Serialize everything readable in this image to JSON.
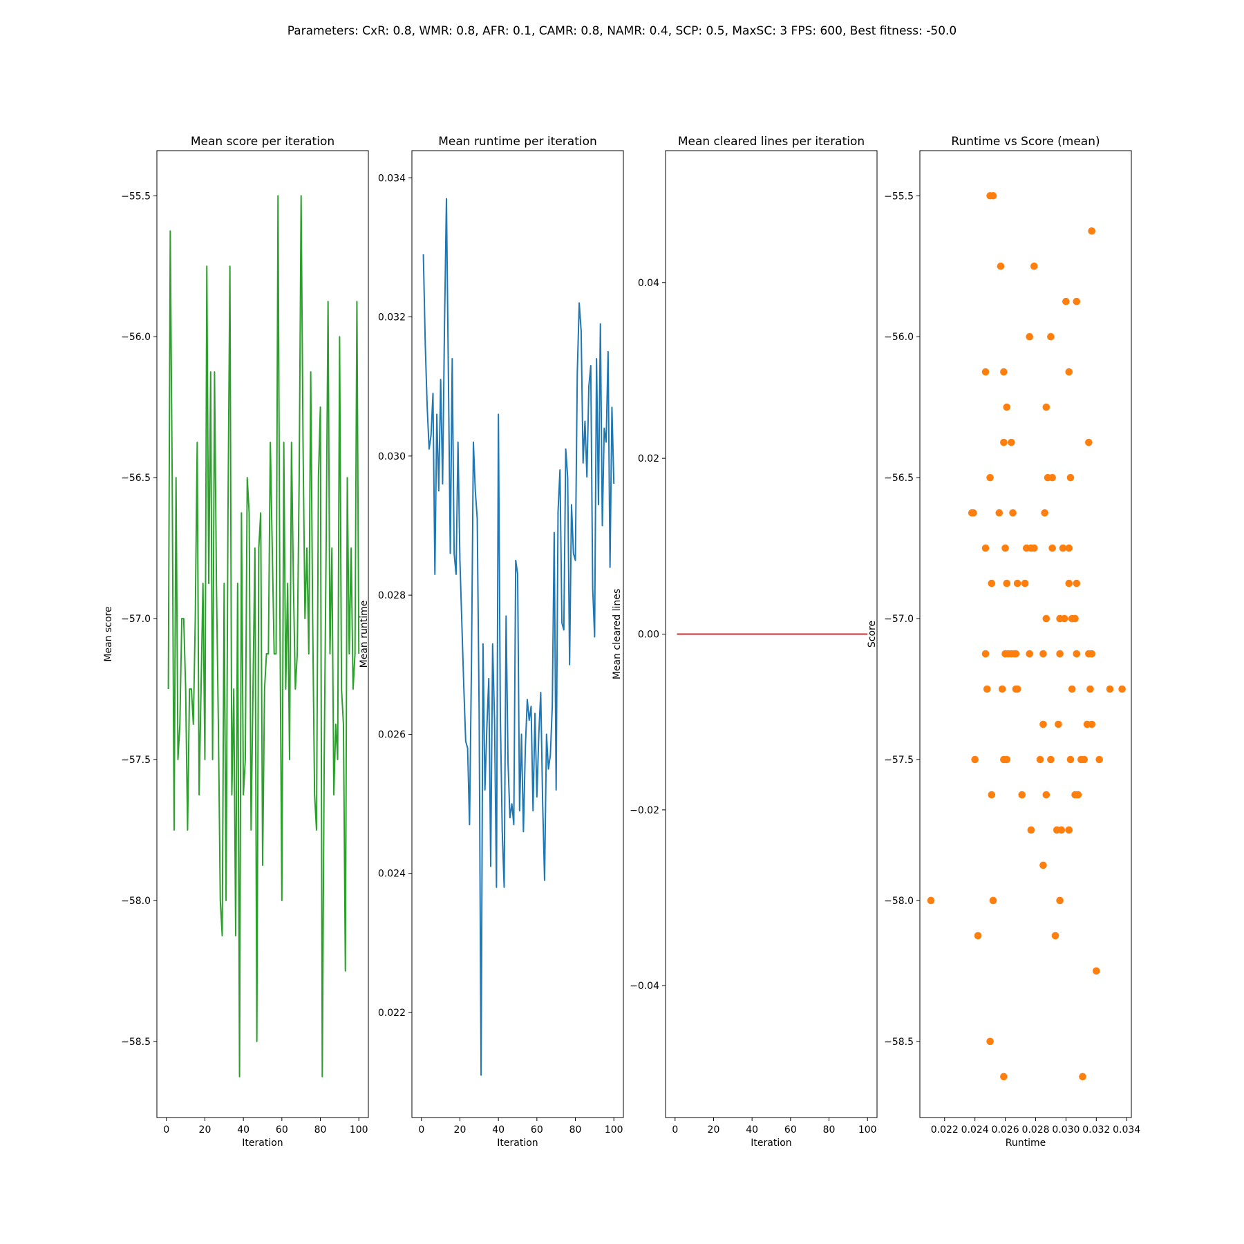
{
  "figure": {
    "suptitle": "Parameters: CxR: 0.8, WMR: 0.8, AFR: 0.1, CAMR: 0.8, NAMR: 0.4, SCP: 0.5, MaxSC: 3  FPS: 600, Best fitness: -50.0"
  },
  "chart_data": [
    {
      "type": "line",
      "title": "Mean score per iteration",
      "xlabel": "Iteration",
      "ylabel": "Mean score",
      "color": "#2ca02c",
      "xlim": [
        -4.95,
        104.95
      ],
      "ylim": [
        -58.77,
        -55.34
      ],
      "xticks": [
        0,
        20,
        40,
        60,
        80,
        100
      ],
      "yticks": [
        -55.5,
        -56.0,
        -56.5,
        -57.0,
        -57.5,
        -58.0,
        -58.5
      ],
      "xtick_labels": [
        "0",
        "20",
        "40",
        "60",
        "80",
        "100"
      ],
      "ytick_labels": [
        "−55.5",
        "−56.0",
        "−56.5",
        "−57.0",
        "−57.5",
        "−58.0",
        "−58.5"
      ],
      "series": [
        {
          "x": [
            1,
            2,
            3,
            4,
            5,
            6,
            7,
            8,
            9,
            10,
            11,
            12,
            13,
            14,
            15,
            16,
            17,
            18,
            19,
            20,
            21,
            22,
            23,
            24,
            25,
            26,
            27,
            28,
            29,
            30,
            31,
            32,
            33,
            34,
            35,
            36,
            37,
            38,
            39,
            40,
            41,
            42,
            43,
            44,
            45,
            46,
            47,
            48,
            49,
            50,
            51,
            52,
            53,
            54,
            55,
            56,
            57,
            58,
            59,
            60,
            61,
            62,
            63,
            64,
            65,
            66,
            67,
            68,
            69,
            70,
            71,
            72,
            73,
            74,
            75,
            76,
            77,
            78,
            79,
            80,
            81,
            82,
            83,
            84,
            85,
            86,
            87,
            88,
            89,
            90,
            91,
            92,
            93,
            94,
            95,
            96,
            97,
            98,
            99,
            100
          ],
          "y": [
            -57.25,
            -55.625,
            -56.5,
            -57.75,
            -56.5,
            -57.5,
            -57.375,
            -57.0,
            -57.0,
            -57.25,
            -57.75,
            -57.25,
            -57.25,
            -57.375,
            -57.0,
            -56.375,
            -57.625,
            -57.25,
            -56.875,
            -57.5,
            -55.75,
            -56.875,
            -56.125,
            -57.5,
            -56.125,
            -56.875,
            -57.375,
            -58.0,
            -58.125,
            -56.875,
            -58.0,
            -56.625,
            -55.75,
            -57.625,
            -57.25,
            -58.125,
            -56.875,
            -58.625,
            -56.625,
            -57.625,
            -57.5,
            -56.5,
            -56.625,
            -57.75,
            -57.25,
            -56.75,
            -58.5,
            -56.75,
            -56.625,
            -57.875,
            -57.25,
            -57.125,
            -57.125,
            -56.375,
            -56.75,
            -57.125,
            -57.125,
            -55.5,
            -57.0,
            -58.0,
            -56.375,
            -57.25,
            -56.875,
            -57.5,
            -56.375,
            -56.875,
            -57.25,
            -57.125,
            -56.5,
            -55.5,
            -56.375,
            -57.0,
            -56.75,
            -57.125,
            -56.125,
            -57.0,
            -57.625,
            -57.75,
            -56.5,
            -56.25,
            -58.625,
            -57.5,
            -56.75,
            -55.875,
            -57.125,
            -56.75,
            -57.625,
            -57.375,
            -57.5,
            -56.0,
            -57.25,
            -57.375,
            -58.25,
            -56.5,
            -57.125,
            -56.75,
            -57.25,
            -57.125,
            -55.875,
            -57.125
          ]
        }
      ]
    },
    {
      "type": "line",
      "title": "Mean runtime per iteration",
      "xlabel": "Iteration",
      "ylabel": "Mean runtime",
      "color": "#1f77b4",
      "xlim": [
        -4.95,
        104.95
      ],
      "ylim": [
        0.02049,
        0.03439
      ],
      "xticks": [
        0,
        20,
        40,
        60,
        80,
        100
      ],
      "yticks": [
        0.022,
        0.024,
        0.026,
        0.028,
        0.03,
        0.032,
        0.034
      ],
      "xtick_labels": [
        "0",
        "20",
        "40",
        "60",
        "80",
        "100"
      ],
      "ytick_labels": [
        "0.022",
        "0.024",
        "0.026",
        "0.028",
        "0.030",
        "0.032",
        "0.034"
      ],
      "series": [
        {
          "x": [
            1,
            2,
            3,
            4,
            5,
            6,
            7,
            8,
            9,
            10,
            11,
            12,
            13,
            14,
            15,
            16,
            17,
            18,
            19,
            20,
            21,
            22,
            23,
            24,
            25,
            26,
            27,
            28,
            29,
            30,
            31,
            32,
            33,
            34,
            35,
            36,
            37,
            38,
            39,
            40,
            41,
            42,
            43,
            44,
            45,
            46,
            47,
            48,
            49,
            50,
            51,
            52,
            53,
            54,
            55,
            56,
            57,
            58,
            59,
            60,
            61,
            62,
            63,
            64,
            65,
            66,
            67,
            68,
            69,
            70,
            71,
            72,
            73,
            74,
            75,
            76,
            77,
            78,
            79,
            80,
            81,
            82,
            83,
            84,
            85,
            86,
            87,
            88,
            89,
            90,
            91,
            92,
            93,
            94,
            95,
            96,
            97,
            98,
            99,
            100
          ],
          "y": [
            0.0329,
            0.0316,
            0.0307,
            0.0301,
            0.0303,
            0.0309,
            0.0283,
            0.0306,
            0.0295,
            0.0311,
            0.0296,
            0.0319,
            0.0337,
            0.0312,
            0.0286,
            0.0314,
            0.0286,
            0.0283,
            0.0302,
            0.0285,
            0.0276,
            0.0267,
            0.0259,
            0.0258,
            0.0247,
            0.027,
            0.0302,
            0.0295,
            0.0291,
            0.0263,
            0.0211,
            0.0273,
            0.0252,
            0.0261,
            0.0268,
            0.0241,
            0.0273,
            0.0262,
            0.0238,
            0.0306,
            0.0263,
            0.0246,
            0.0238,
            0.0277,
            0.0256,
            0.0248,
            0.025,
            0.0247,
            0.0285,
            0.0283,
            0.0249,
            0.026,
            0.0246,
            0.0258,
            0.0265,
            0.0262,
            0.0264,
            0.0249,
            0.0263,
            0.0251,
            0.026,
            0.0266,
            0.025,
            0.0239,
            0.026,
            0.0255,
            0.0257,
            0.0264,
            0.0289,
            0.0252,
            0.0292,
            0.0298,
            0.0276,
            0.0275,
            0.0301,
            0.0297,
            0.027,
            0.0293,
            0.0286,
            0.0285,
            0.0312,
            0.0322,
            0.0318,
            0.0299,
            0.0305,
            0.0297,
            0.031,
            0.0313,
            0.0281,
            0.0274,
            0.0314,
            0.0293,
            0.0319,
            0.029,
            0.0304,
            0.0302,
            0.0315,
            0.0284,
            0.0307,
            0.0296
          ]
        }
      ]
    },
    {
      "type": "line",
      "title": "Mean cleared lines per iteration",
      "xlabel": "Iteration",
      "ylabel": "Mean cleared lines",
      "color": "#d62728",
      "xlim": [
        -4.95,
        104.95
      ],
      "ylim": [
        -0.055,
        0.055
      ],
      "xticks": [
        0,
        20,
        40,
        60,
        80,
        100
      ],
      "yticks": [
        0.04,
        0.02,
        0.0,
        -0.02,
        -0.04
      ],
      "xtick_labels": [
        "0",
        "20",
        "40",
        "60",
        "80",
        "100"
      ],
      "ytick_labels": [
        "0.04",
        "0.02",
        "0.00",
        "−0.02",
        "−0.04"
      ],
      "series": [
        {
          "x": [
            1,
            100
          ],
          "y": [
            0,
            0
          ]
        }
      ]
    },
    {
      "type": "scatter",
      "title": "Runtime vs Score (mean)",
      "xlabel": "Runtime",
      "ylabel": "Score",
      "color": "#ff7f0e",
      "xlim": [
        0.02037,
        0.03431
      ],
      "ylim": [
        -58.77,
        -55.34
      ],
      "xticks": [
        0.022,
        0.024,
        0.026,
        0.028,
        0.03,
        0.032,
        0.034
      ],
      "yticks": [
        -55.5,
        -56.0,
        -56.5,
        -57.0,
        -57.5,
        -58.0,
        -58.5
      ],
      "xtick_labels": [
        "0.022",
        "0.024",
        "0.026",
        "0.028",
        "0.030",
        "0.032",
        "0.034"
      ],
      "ytick_labels": [
        "−55.5",
        "−56.0",
        "−56.5",
        "−57.0",
        "−57.5",
        "−58.0",
        "−58.5"
      ],
      "points": [
        [
          0.025,
          -55.5
        ],
        [
          0.0252,
          -55.5
        ],
        [
          0.0317,
          -55.625
        ],
        [
          0.0257,
          -55.75
        ],
        [
          0.0279,
          -55.75
        ],
        [
          0.03,
          -55.875
        ],
        [
          0.0307,
          -55.875
        ],
        [
          0.0276,
          -56.0
        ],
        [
          0.029,
          -56.0
        ],
        [
          0.0247,
          -56.125
        ],
        [
          0.0259,
          -56.125
        ],
        [
          0.0302,
          -56.125
        ],
        [
          0.0261,
          -56.25
        ],
        [
          0.0287,
          -56.25
        ],
        [
          0.0259,
          -56.375
        ],
        [
          0.0264,
          -56.375
        ],
        [
          0.0315,
          -56.375
        ],
        [
          0.025,
          -56.5
        ],
        [
          0.0288,
          -56.5
        ],
        [
          0.0291,
          -56.5
        ],
        [
          0.0303,
          -56.5
        ],
        [
          0.0238,
          -56.625
        ],
        [
          0.0239,
          -56.625
        ],
        [
          0.0256,
          -56.625
        ],
        [
          0.0265,
          -56.625
        ],
        [
          0.0286,
          -56.625
        ],
        [
          0.0247,
          -56.75
        ],
        [
          0.026,
          -56.75
        ],
        [
          0.0274,
          -56.75
        ],
        [
          0.0277,
          -56.75
        ],
        [
          0.0279,
          -56.75
        ],
        [
          0.0291,
          -56.75
        ],
        [
          0.0298,
          -56.75
        ],
        [
          0.0302,
          -56.75
        ],
        [
          0.0251,
          -56.875
        ],
        [
          0.0261,
          -56.875
        ],
        [
          0.0268,
          -56.875
        ],
        [
          0.0273,
          -56.875
        ],
        [
          0.0302,
          -56.875
        ],
        [
          0.0307,
          -56.875
        ],
        [
          0.0287,
          -57.0
        ],
        [
          0.0296,
          -57.0
        ],
        [
          0.0299,
          -57.0
        ],
        [
          0.0304,
          -57.0
        ],
        [
          0.0306,
          -57.0
        ],
        [
          0.0247,
          -57.125
        ],
        [
          0.026,
          -57.125
        ],
        [
          0.0262,
          -57.125
        ],
        [
          0.0264,
          -57.125
        ],
        [
          0.0266,
          -57.125
        ],
        [
          0.0267,
          -57.125
        ],
        [
          0.0276,
          -57.125
        ],
        [
          0.0285,
          -57.125
        ],
        [
          0.0296,
          -57.125
        ],
        [
          0.0307,
          -57.125
        ],
        [
          0.0315,
          -57.125
        ],
        [
          0.0317,
          -57.125
        ],
        [
          0.0248,
          -57.25
        ],
        [
          0.0258,
          -57.25
        ],
        [
          0.0267,
          -57.25
        ],
        [
          0.0268,
          -57.25
        ],
        [
          0.0304,
          -57.25
        ],
        [
          0.0316,
          -57.25
        ],
        [
          0.0329,
          -57.25
        ],
        [
          0.0337,
          -57.25
        ],
        [
          0.0285,
          -57.375
        ],
        [
          0.0295,
          -57.375
        ],
        [
          0.0314,
          -57.375
        ],
        [
          0.0317,
          -57.375
        ],
        [
          0.024,
          -57.5
        ],
        [
          0.0259,
          -57.5
        ],
        [
          0.0261,
          -57.5
        ],
        [
          0.0283,
          -57.5
        ],
        [
          0.029,
          -57.5
        ],
        [
          0.0303,
          -57.5
        ],
        [
          0.031,
          -57.5
        ],
        [
          0.0312,
          -57.5
        ],
        [
          0.0322,
          -57.5
        ],
        [
          0.0251,
          -57.625
        ],
        [
          0.0271,
          -57.625
        ],
        [
          0.0287,
          -57.625
        ],
        [
          0.0306,
          -57.625
        ],
        [
          0.0308,
          -57.625
        ],
        [
          0.0277,
          -57.75
        ],
        [
          0.0294,
          -57.75
        ],
        [
          0.0297,
          -57.75
        ],
        [
          0.0302,
          -57.75
        ],
        [
          0.0285,
          -57.875
        ],
        [
          0.0211,
          -58.0
        ],
        [
          0.0252,
          -58.0
        ],
        [
          0.0296,
          -58.0
        ],
        [
          0.0242,
          -58.125
        ],
        [
          0.0293,
          -58.125
        ],
        [
          0.032,
          -58.25
        ],
        [
          0.025,
          -58.5
        ],
        [
          0.0259,
          -58.625
        ],
        [
          0.0311,
          -58.625
        ]
      ]
    }
  ]
}
